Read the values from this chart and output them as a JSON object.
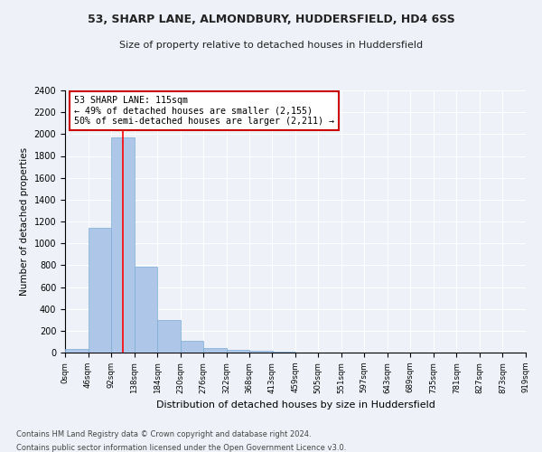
{
  "title": "53, SHARP LANE, ALMONDBURY, HUDDERSFIELD, HD4 6SS",
  "subtitle": "Size of property relative to detached houses in Huddersfield",
  "xlabel": "Distribution of detached houses by size in Huddersfield",
  "ylabel": "Number of detached properties",
  "footer_line1": "Contains HM Land Registry data © Crown copyright and database right 2024.",
  "footer_line2": "Contains public sector information licensed under the Open Government Licence v3.0.",
  "bar_color": "#aec6e8",
  "bar_edge_color": "#7aadd4",
  "background_color": "#eef2f8",
  "grid_color": "#ffffff",
  "red_line_x": 115,
  "annotation_text": "53 SHARP LANE: 115sqm\n← 49% of detached houses are smaller (2,155)\n50% of semi-detached houses are larger (2,211) →",
  "annotation_box_color": "#ffffff",
  "annotation_box_edge": "#cc0000",
  "bin_edges": [
    0,
    46,
    92,
    138,
    184,
    230,
    276,
    322,
    368,
    413,
    459,
    505,
    551,
    597,
    643,
    689,
    735,
    781,
    827,
    873,
    919
  ],
  "bin_labels": [
    "0sqm",
    "46sqm",
    "92sqm",
    "138sqm",
    "184sqm",
    "230sqm",
    "276sqm",
    "322sqm",
    "368sqm",
    "413sqm",
    "459sqm",
    "505sqm",
    "551sqm",
    "597sqm",
    "643sqm",
    "689sqm",
    "735sqm",
    "781sqm",
    "827sqm",
    "873sqm",
    "919sqm"
  ],
  "bar_heights": [
    30,
    1145,
    1970,
    785,
    300,
    105,
    40,
    28,
    15,
    8,
    0,
    0,
    0,
    0,
    0,
    0,
    0,
    0,
    0,
    0
  ],
  "ylim": [
    0,
    2400
  ],
  "yticks": [
    0,
    200,
    400,
    600,
    800,
    1000,
    1200,
    1400,
    1600,
    1800,
    2000,
    2200,
    2400
  ]
}
